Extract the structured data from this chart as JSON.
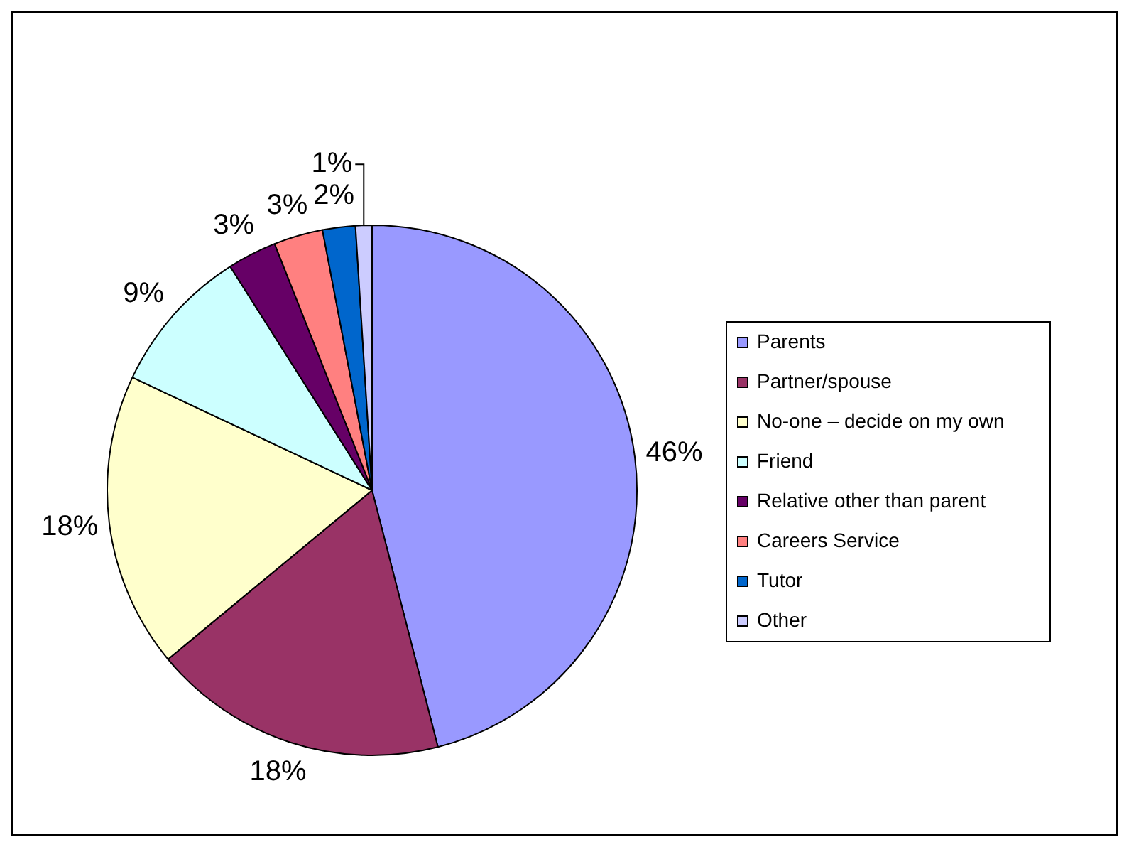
{
  "chart_data": {
    "type": "pie",
    "categories": [
      "Parents",
      "Partner/spouse",
      "No-one – decide on my own",
      "Friend",
      "Relative other than parent",
      "Careers Service",
      "Tutor",
      "Other"
    ],
    "values": [
      46,
      18,
      18,
      9,
      3,
      3,
      2,
      1
    ],
    "colors": [
      "#9999ff",
      "#993366",
      "#ffffcc",
      "#ccffff",
      "#660066",
      "#ff8080",
      "#0066cc",
      "#ccccff"
    ],
    "value_labels": [
      "46%",
      "18%",
      "18%",
      "9%",
      "3%",
      "3%",
      "2%",
      "1%"
    ],
    "legend": "right"
  }
}
